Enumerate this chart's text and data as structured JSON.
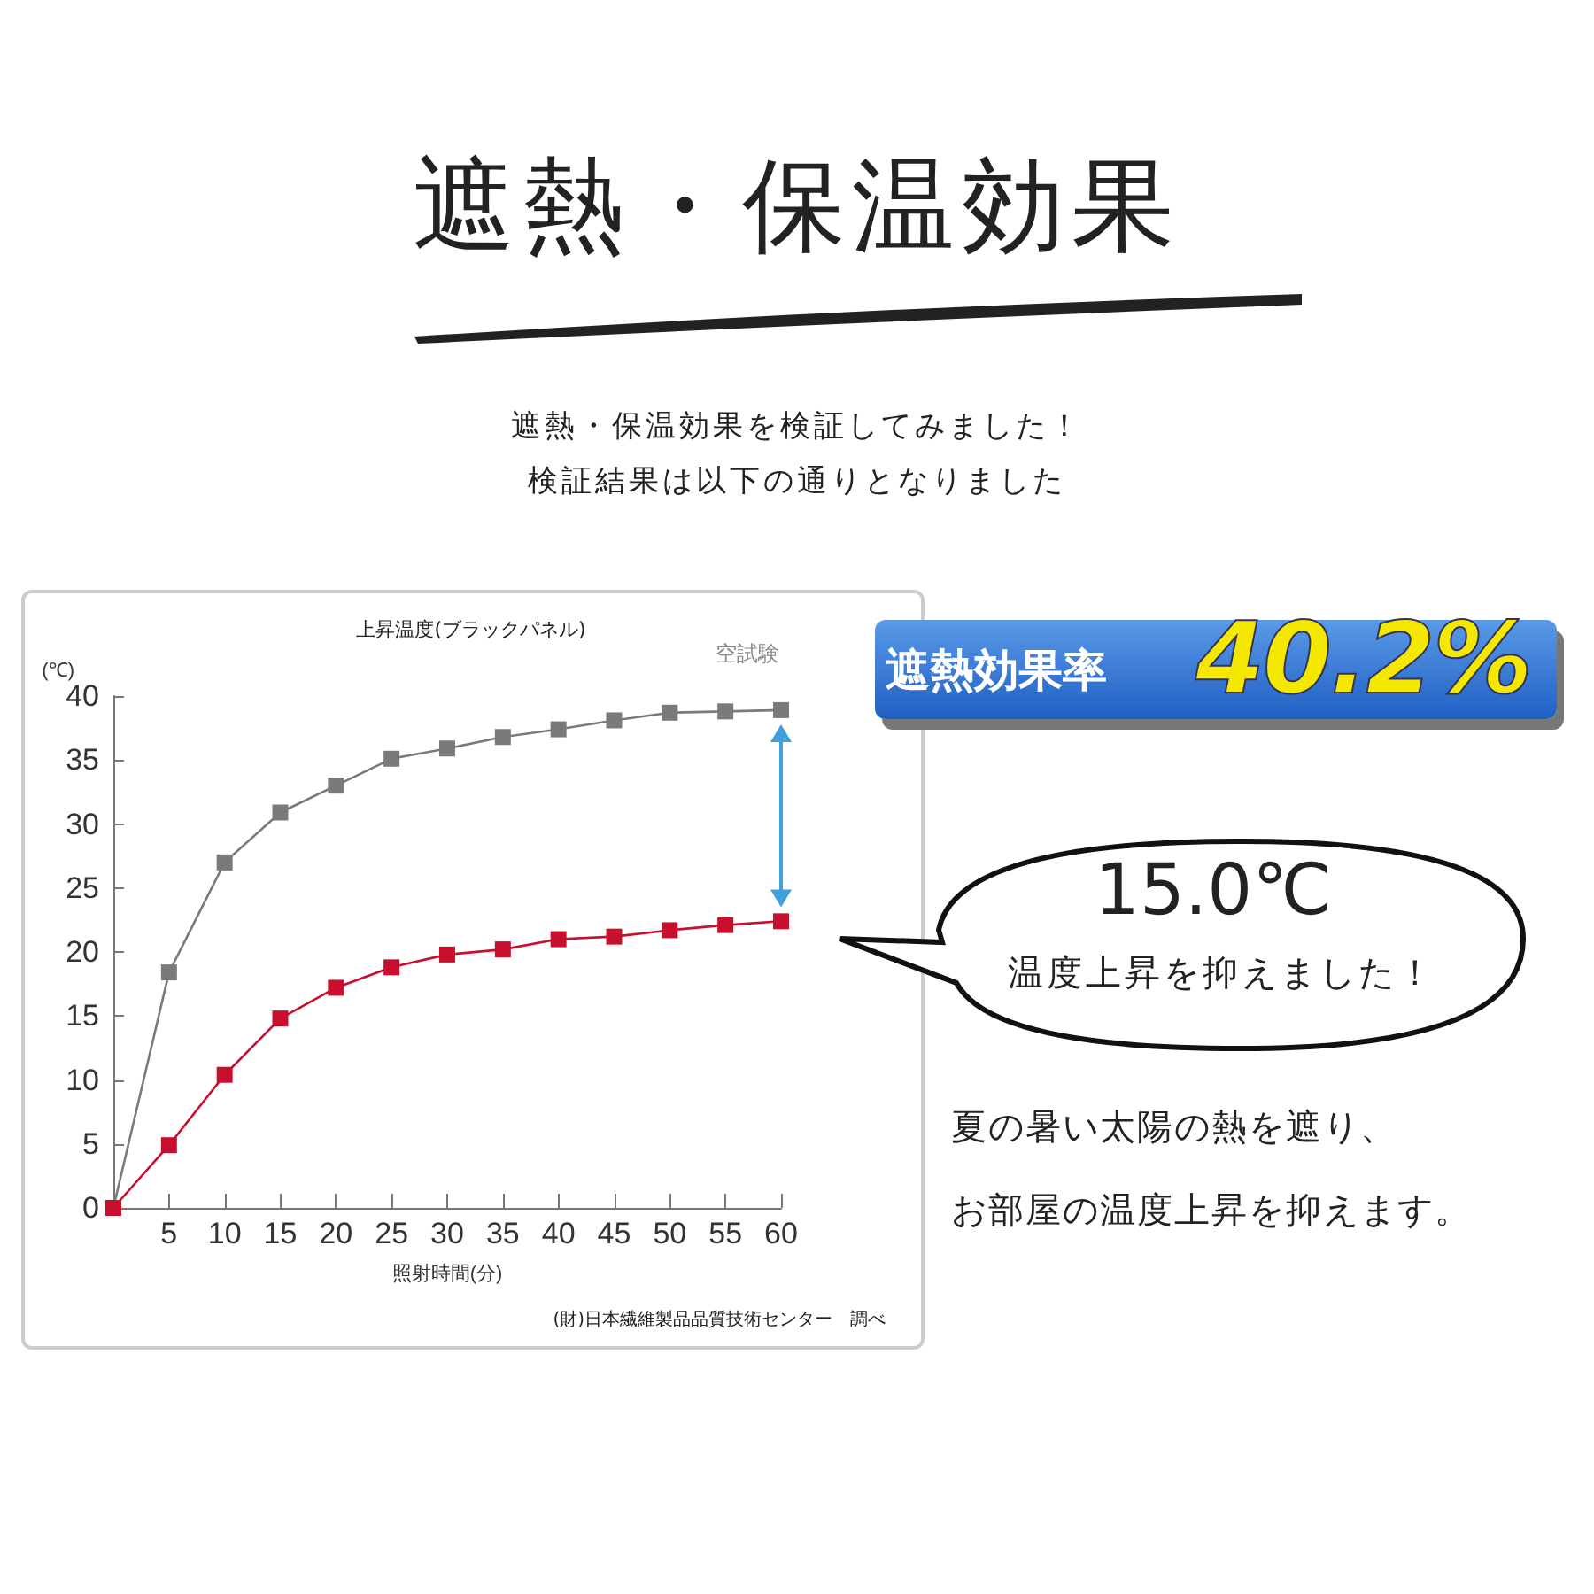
{
  "chart_data": {
    "type": "line",
    "title": "遮熱・保温効果",
    "subtitle": "遮熱・保温効果を検証してみました！",
    "xlabel": "照射時間(分)",
    "ylabel": "(℃)",
    "x": [
      0,
      5,
      10,
      15,
      20,
      25,
      30,
      35,
      40,
      45,
      50,
      55,
      60
    ],
    "series": [
      {
        "name": "空試験",
        "color": "#7a7a7a",
        "values": [
          0,
          18.4,
          27.0,
          30.9,
          33.0,
          35.1,
          35.9,
          36.8,
          37.4,
          38.1,
          38.7,
          38.8,
          38.9
        ]
      },
      {
        "color": "#c8102e",
        "values": [
          0,
          4.9,
          10.4,
          14.8,
          17.2,
          18.8,
          19.8,
          20.2,
          21.0,
          21.2,
          21.7,
          22.1,
          22.4
        ]
      }
    ],
    "xlim": [
      0,
      60
    ],
    "xticks": [
      5,
      10,
      15,
      20,
      25,
      30,
      35,
      40,
      45,
      50,
      55,
      60
    ],
    "ylim": [
      0,
      40
    ],
    "yticks": [
      0,
      5,
      10,
      15,
      20,
      25,
      30,
      35,
      40
    ],
    "grid": false,
    "legend": false,
    "marker": "square",
    "line_style": "solid",
    "annotations": [
      "上昇温度(ブラックパネル)",
      "(財)日本繊維製品品質技術センター　調べ",
      "遮熱効果率",
      "40.2%",
      "15.0℃",
      "温度上昇を抑えました！",
      "夏の暑い太陽の熱を遮り、",
      "お部屋の温度上昇を抑えます。",
      "検証結果は以下の通りとなりました"
    ]
  }
}
